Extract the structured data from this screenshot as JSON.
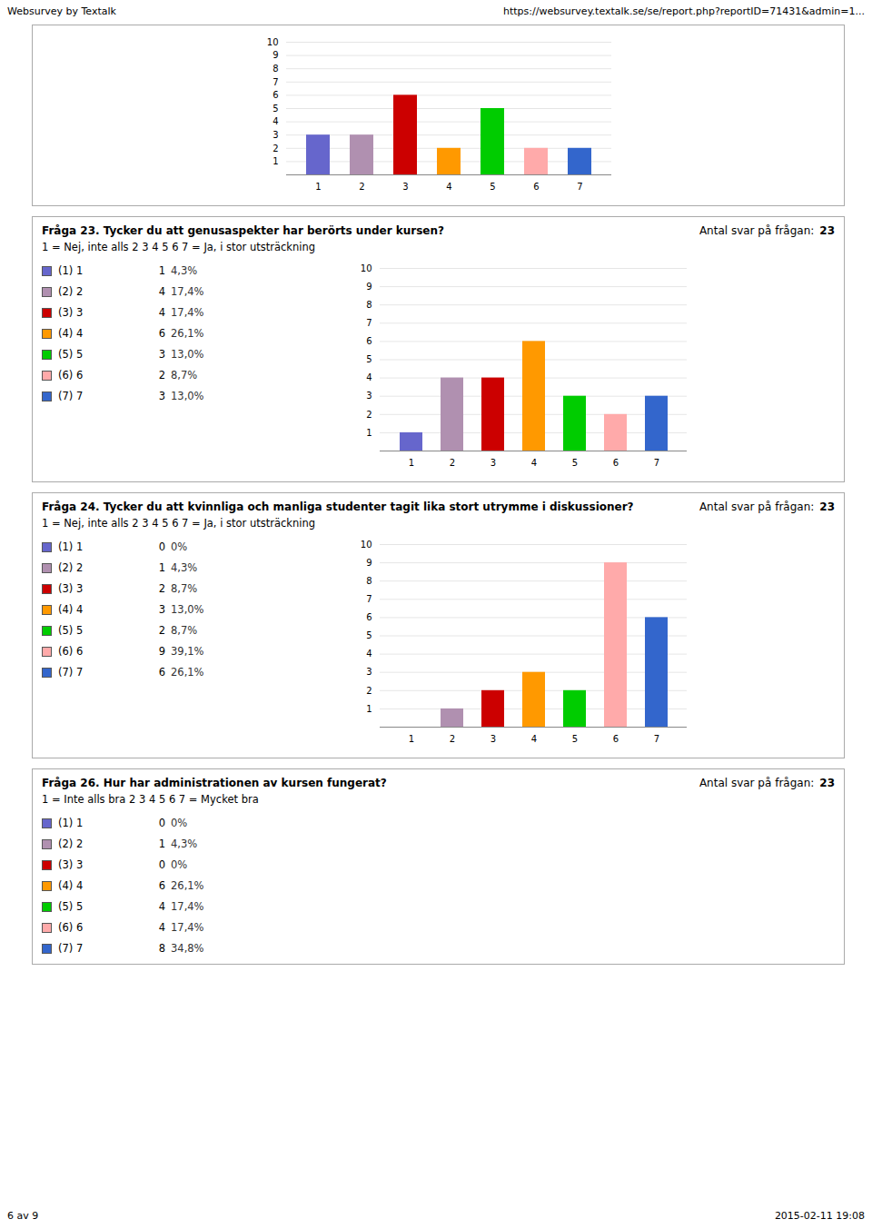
{
  "header": [
    "Websurvey by Textalk",
    "https://websurvey.textalk.se/se/report.php?reportID=71431&admin=1..."
  ],
  "footer": [
    "6 av 9",
    "2015-02-11 19:08"
  ],
  "chart_data": [
    {
      "type": "bar",
      "categories": [
        "1",
        "2",
        "3",
        "4",
        "5",
        "6",
        "7"
      ],
      "values": [
        3,
        3,
        6,
        2,
        5,
        2,
        2
      ],
      "colors": [
        "#6666cc",
        "#b090b0",
        "#cc0000",
        "#ff9900",
        "#00cc00",
        "#ffaaaa",
        "#3366cc"
      ],
      "ylim": [
        0,
        10
      ],
      "yticks": [
        1,
        2,
        3,
        4,
        5,
        6,
        7,
        8,
        9,
        10
      ],
      "grid": true
    },
    {
      "type": "bar",
      "title": "Fråga 23. Tycker du att genusaspekter har berörts under kursen?",
      "response_label": "Antal svar på frågan:",
      "response_count": 23,
      "subtitle": "1 = Nej, inte alls 2 3 4 5 6 7 = Ja, i stor utsträckning",
      "legend_labels": [
        "(1) 1",
        "(2) 2",
        "(3) 3",
        "(4) 4",
        "(5) 5",
        "(6) 6",
        "(7) 7"
      ],
      "categories": [
        "1",
        "2",
        "3",
        "4",
        "5",
        "6",
        "7"
      ],
      "values": [
        1,
        4,
        4,
        6,
        3,
        2,
        3
      ],
      "percentages": [
        4.3,
        17.4,
        17.4,
        26.1,
        13.0,
        8.7,
        13.0
      ],
      "percentage_labels": [
        "4,3%",
        "17,4%",
        "17,4%",
        "26,1%",
        "13,0%",
        "8,7%",
        "13,0%"
      ],
      "colors": [
        "#6666cc",
        "#b090b0",
        "#cc0000",
        "#ff9900",
        "#00cc00",
        "#ffaaaa",
        "#3366cc"
      ],
      "ylim": [
        0,
        10
      ],
      "yticks": [
        1,
        2,
        3,
        4,
        5,
        6,
        7,
        8,
        9,
        10
      ],
      "grid": true
    },
    {
      "type": "bar",
      "title": "Fråga 24. Tycker du att kvinnliga och manliga studenter tagit lika stort utrymme i diskussioner?",
      "response_label": "Antal svar på frågan:",
      "response_count": 23,
      "subtitle": "1 = Nej, inte alls 2 3 4 5 6 7 = Ja, i stor utsträckning",
      "legend_labels": [
        "(1) 1",
        "(2) 2",
        "(3) 3",
        "(4) 4",
        "(5) 5",
        "(6) 6",
        "(7) 7"
      ],
      "categories": [
        "1",
        "2",
        "3",
        "4",
        "5",
        "6",
        "7"
      ],
      "values": [
        0,
        1,
        2,
        3,
        2,
        9,
        6
      ],
      "percentages": [
        0,
        4.3,
        8.7,
        13.0,
        8.7,
        39.1,
        26.1
      ],
      "percentage_labels": [
        "0%",
        "4,3%",
        "8,7%",
        "13,0%",
        "8,7%",
        "39,1%",
        "26,1%"
      ],
      "colors": [
        "#6666cc",
        "#b090b0",
        "#cc0000",
        "#ff9900",
        "#00cc00",
        "#ffaaaa",
        "#3366cc"
      ],
      "ylim": [
        0,
        10
      ],
      "yticks": [
        1,
        2,
        3,
        4,
        5,
        6,
        7,
        8,
        9,
        10
      ],
      "grid": true
    },
    {
      "type": "table",
      "title": "Fråga 26. Hur har administrationen av kursen fungerat?",
      "response_label": "Antal svar på frågan:",
      "response_count": 23,
      "subtitle": "1 = Inte alls bra 2 3 4 5 6 7 = Mycket bra",
      "legend_labels": [
        "(1) 1",
        "(2) 2",
        "(3) 3",
        "(4) 4",
        "(5) 5",
        "(6) 6",
        "(7) 7"
      ],
      "values": [
        0,
        1,
        0,
        6,
        4,
        4,
        8
      ],
      "percentages": [
        0,
        4.3,
        0,
        26.1,
        17.4,
        17.4,
        34.8
      ],
      "percentage_labels": [
        "0%",
        "4,3%",
        "0%",
        "26,1%",
        "17,4%",
        "17,4%",
        "34,8%"
      ],
      "colors": [
        "#6666cc",
        "#b090b0",
        "#cc0000",
        "#ff9900",
        "#00cc00",
        "#ffaaaa",
        "#3366cc"
      ]
    }
  ]
}
